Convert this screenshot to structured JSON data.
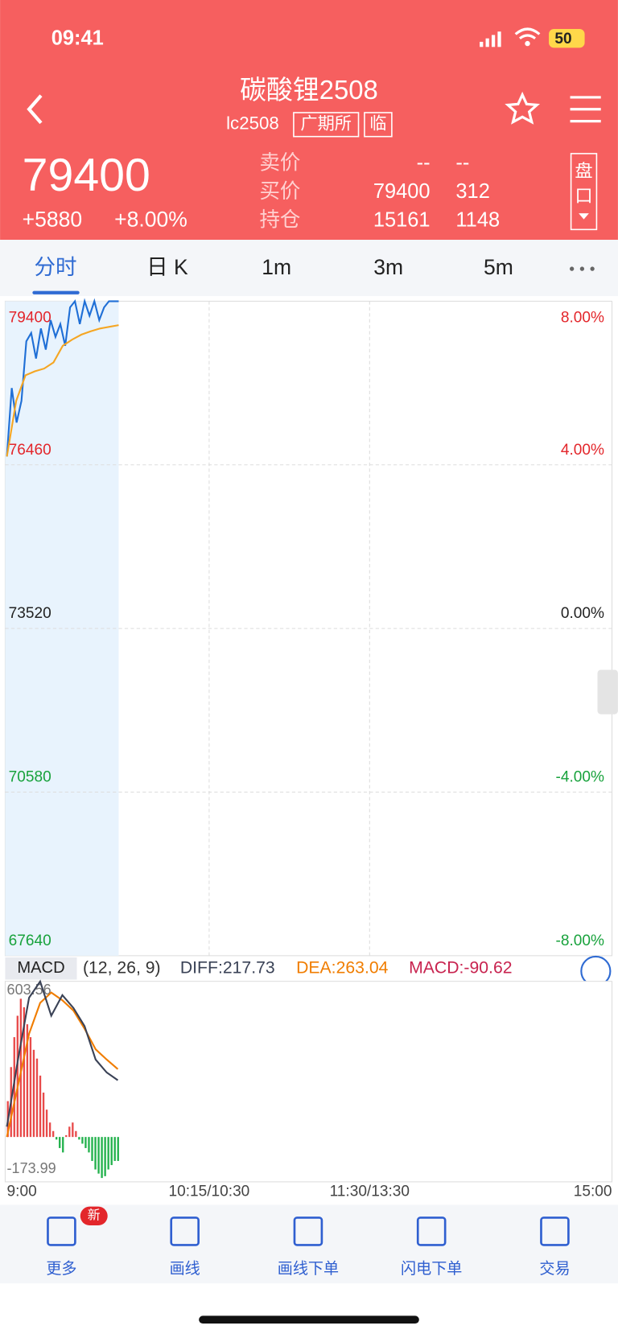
{
  "status_bar": {
    "time": "09:41",
    "battery": "50"
  },
  "header": {
    "title": "碳酸锂2508",
    "code": "lc2508",
    "exchange": "广期所",
    "tag": "临"
  },
  "quote": {
    "price": "79400",
    "change": "+5880",
    "change_pct": "+8.00%",
    "rows": [
      {
        "label": "卖价",
        "price": "--",
        "volume": "--"
      },
      {
        "label": "买价",
        "price": "79400",
        "volume": "312"
      },
      {
        "label": "持仓",
        "price": "15161",
        "volume": "1148"
      }
    ],
    "panel_button": "盘口"
  },
  "tabs": [
    "分时",
    "日 K",
    "1m",
    "3m",
    "5m"
  ],
  "chart": {
    "ylim": [
      67640,
      79400
    ],
    "yticks": [
      79400,
      76460,
      73520,
      70580,
      67640
    ],
    "pct_ticks": [
      "8.00%",
      "4.00%",
      "0.00%",
      "-4.00%",
      "-8.00%"
    ],
    "price": [
      76610,
      77840,
      77220,
      77610,
      78680,
      78830,
      78370,
      78910,
      78530,
      79060,
      78760,
      78990,
      78600,
      79290,
      79400,
      78990,
      79400,
      79140,
      79400,
      79060,
      79290,
      79400,
      79400,
      79400
    ],
    "average": [
      76610,
      77610,
      78070,
      78140,
      78190,
      78300,
      78600,
      78710,
      78800,
      78860,
      78910,
      78940,
      78970
    ],
    "xticks": [
      "9:00",
      "10:15/10:30",
      "11:30/13:30",
      "15:00"
    ]
  },
  "macd": {
    "name": "MACD",
    "params": "(12, 26, 9)",
    "diff_label": "DIFF:217.73",
    "dea_label": "DEA:263.04",
    "macd_label": "MACD:-90.62",
    "ylim": [
      -173.99,
      603.56
    ],
    "yticks": [
      603.56,
      -173.99
    ],
    "histogram": [
      139,
      271,
      387,
      470,
      536,
      503,
      437,
      387,
      338,
      304,
      238,
      172,
      106,
      56,
      23,
      -10,
      -43,
      -60,
      7,
      40,
      56,
      23,
      -10,
      -26,
      -43,
      -60,
      -93,
      -126,
      -142,
      -159,
      -152,
      -126,
      -109,
      -93,
      -93
    ],
    "diff": [
      40,
      300,
      540,
      603,
      470,
      550,
      500,
      430,
      300,
      250,
      220
    ],
    "dea": [
      0,
      200,
      400,
      520,
      560,
      530,
      490,
      420,
      340,
      300,
      263
    ]
  },
  "toolbar": [
    {
      "label": "更多",
      "badge": "新"
    },
    {
      "label": "画线"
    },
    {
      "label": "画线下单"
    },
    {
      "label": "闪电下单"
    },
    {
      "label": "交易"
    }
  ]
}
